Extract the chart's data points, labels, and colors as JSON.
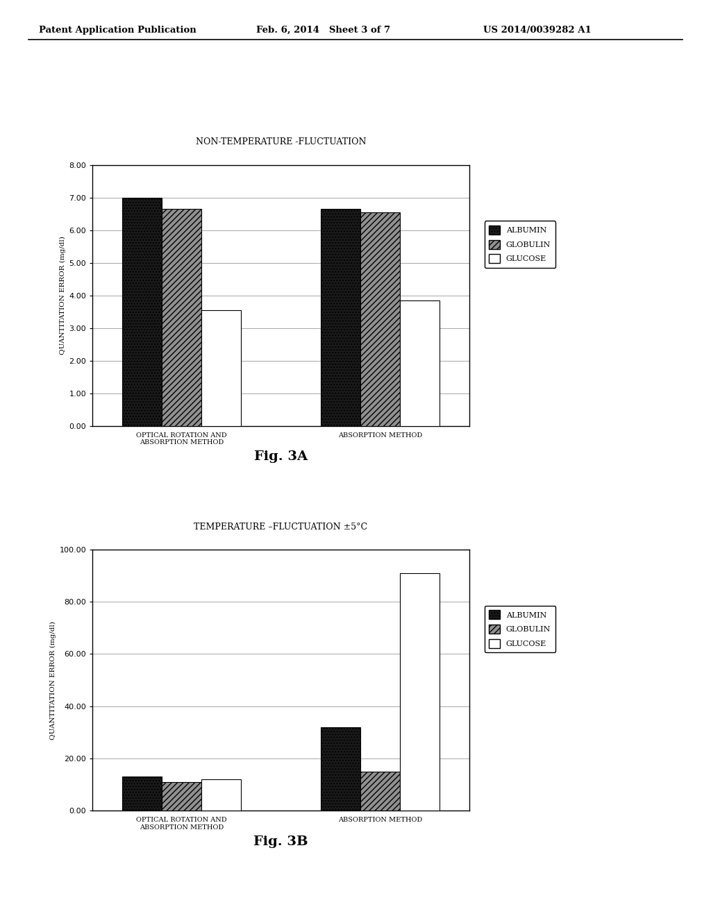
{
  "chart_a": {
    "title": "Non-Temperature -Fluctuation",
    "ylabel": "Quantitation Error (mg/dl)",
    "categories": [
      "Optical Rotation And\nAbsorption Method",
      "Absorption Method"
    ],
    "series": {
      "Albumin": [
        7.0,
        6.65
      ],
      "Globulin": [
        6.65,
        6.55
      ],
      "Glucose": [
        3.55,
        3.85
      ]
    },
    "ylim": [
      0,
      8.0
    ],
    "yticks": [
      0.0,
      1.0,
      2.0,
      3.0,
      4.0,
      5.0,
      6.0,
      7.0,
      8.0
    ],
    "fig_label": "Fig. 3A"
  },
  "chart_b": {
    "title": "Temperature –Fluctuation ±5°C",
    "ylabel": "Quantitation Error (mg/dl)",
    "categories": [
      "Optical Rotation And\nAbsorption Method",
      "Absorption Method"
    ],
    "series": {
      "Albumin": [
        13.0,
        32.0
      ],
      "Globulin": [
        11.0,
        15.0
      ],
      "Glucose": [
        12.0,
        91.0
      ]
    },
    "ylim": [
      0,
      100.0
    ],
    "yticks": [
      0.0,
      20.0,
      40.0,
      60.0,
      80.0,
      100.0
    ],
    "fig_label": "Fig. 3B"
  },
  "legend_labels": [
    "Albumin",
    "Globulin",
    "Glucose"
  ],
  "bar_colors": [
    "#1a1a1a",
    "#909090",
    "#ffffff"
  ],
  "bar_hatches": [
    "....",
    "////",
    ""
  ],
  "bar_edgecolor": "#000000",
  "header_left": "Patent Application Publication",
  "header_mid": "Feb. 6, 2014   Sheet 3 of 7",
  "header_right": "US 2014/0039282 A1",
  "background_color": "#ffffff"
}
